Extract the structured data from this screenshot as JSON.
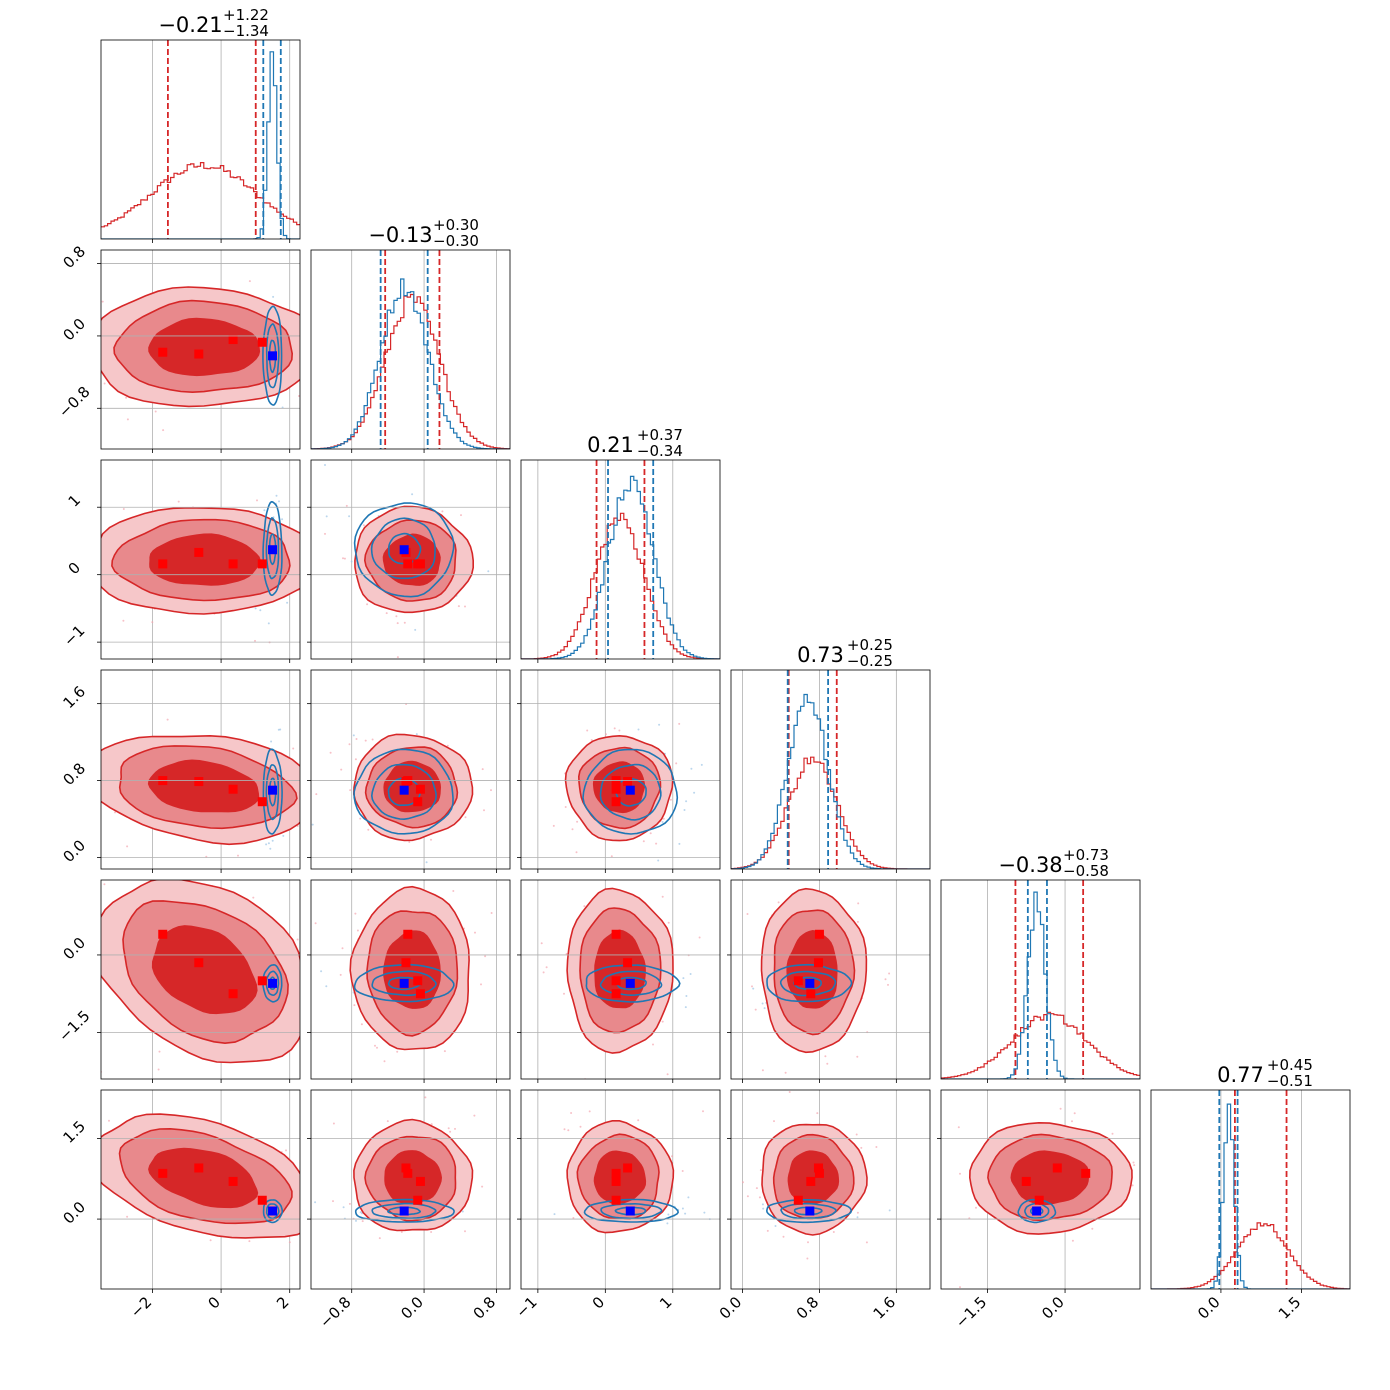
{
  "chart_data": {
    "type": "corner",
    "parameters": 6,
    "grid": true,
    "series": [
      {
        "color": "#d62728",
        "contours": "filled"
      },
      {
        "color": "#1f77b4",
        "contours": "lines"
      }
    ],
    "titles": [
      {
        "center": "−0.21",
        "plus": "+1.22",
        "minus": "−1.34"
      },
      {
        "center": "−0.13",
        "plus": "+0.30",
        "minus": "−0.30"
      },
      {
        "center": "0.21",
        "plus": "+0.37",
        "minus": "−0.34"
      },
      {
        "center": "0.73",
        "plus": "+0.25",
        "minus": "−0.25"
      },
      {
        "center": "−0.38",
        "plus": "+0.73",
        "minus": "−0.58"
      },
      {
        "center": "0.77",
        "plus": "+0.45",
        "minus": "−0.51"
      }
    ],
    "axes": [
      {
        "range": [
          -3.5,
          2.3
        ],
        "ticks": [
          -2,
          0,
          2
        ],
        "tick_labels": [
          "−2",
          "0",
          "2"
        ]
      },
      {
        "range": [
          -1.25,
          0.95
        ],
        "ticks": [
          -0.8,
          0.0,
          0.8
        ],
        "tick_labels": [
          "−0.8",
          "0.0",
          "0.8"
        ]
      },
      {
        "range": [
          -1.25,
          1.7
        ],
        "ticks": [
          -1,
          0,
          1
        ],
        "tick_labels": [
          "−1",
          "0",
          "1"
        ]
      },
      {
        "range": [
          -0.12,
          1.95
        ],
        "ticks": [
          0.0,
          0.8,
          1.6
        ],
        "tick_labels": [
          "0.0",
          "0.8",
          "1.6"
        ]
      },
      {
        "range": [
          -2.4,
          1.45
        ],
        "ticks": [
          -1.5,
          0.0
        ],
        "tick_labels": [
          "−1.5",
          "0.0"
        ]
      },
      {
        "range": [
          -1.3,
          2.4
        ],
        "ticks": [
          0.0,
          1.5
        ],
        "tick_labels": [
          "0.0",
          "1.5"
        ]
      }
    ],
    "quantiles": {
      "red": [
        [
          -1.55,
          1.01
        ],
        [
          -0.43,
          0.17
        ],
        [
          -0.13,
          0.58
        ],
        [
          0.48,
          0.98
        ],
        [
          -0.96,
          0.35
        ],
        [
          0.26,
          1.22
        ]
      ],
      "blue": [
        [
          1.23,
          1.74
        ],
        [
          -0.48,
          0.04
        ],
        [
          0.04,
          0.71
        ],
        [
          0.47,
          0.89
        ],
        [
          -0.72,
          -0.35
        ],
        [
          -0.03,
          0.31
        ]
      ]
    },
    "histograms": {
      "red": [
        {
          "mu": -0.5,
          "sd": 1.55,
          "peak": 0.37
        },
        {
          "mu": -0.13,
          "sd": 0.3,
          "peak": 0.75
        },
        {
          "mu": 0.21,
          "sd": 0.36,
          "peak": 0.72
        },
        {
          "mu": 0.73,
          "sd": 0.25,
          "peak": 0.55
        },
        {
          "mu": -0.3,
          "sd": 0.72,
          "peak": 0.32
        },
        {
          "mu": 0.77,
          "sd": 0.47,
          "peak": 0.33
        }
      ],
      "blue": [
        {
          "mu": 1.5,
          "sd": 0.13,
          "peak": 0.92
        },
        {
          "mu": -0.22,
          "sd": 0.26,
          "peak": 0.82
        },
        {
          "mu": 0.38,
          "sd": 0.33,
          "peak": 0.9
        },
        {
          "mu": 0.68,
          "sd": 0.21,
          "peak": 0.85
        },
        {
          "mu": -0.55,
          "sd": 0.17,
          "peak": 0.9
        },
        {
          "mu": 0.15,
          "sd": 0.1,
          "peak": 0.9
        }
      ]
    },
    "markers": {
      "red": [
        [
          -1.7,
          -0.18,
          0.16,
          0.8,
          0.4,
          0.85
        ],
        [
          -0.65,
          -0.2,
          0.33,
          0.79,
          -0.15,
          0.95
        ],
        [
          0.35,
          -0.04,
          0.16,
          0.71,
          -0.75,
          0.7
        ],
        [
          1.2,
          -0.07,
          0.16,
          0.58,
          -0.5,
          0.35
        ]
      ],
      "blue": [
        1.5,
        -0.22,
        0.37,
        0.7,
        -0.55,
        0.15
      ]
    }
  }
}
